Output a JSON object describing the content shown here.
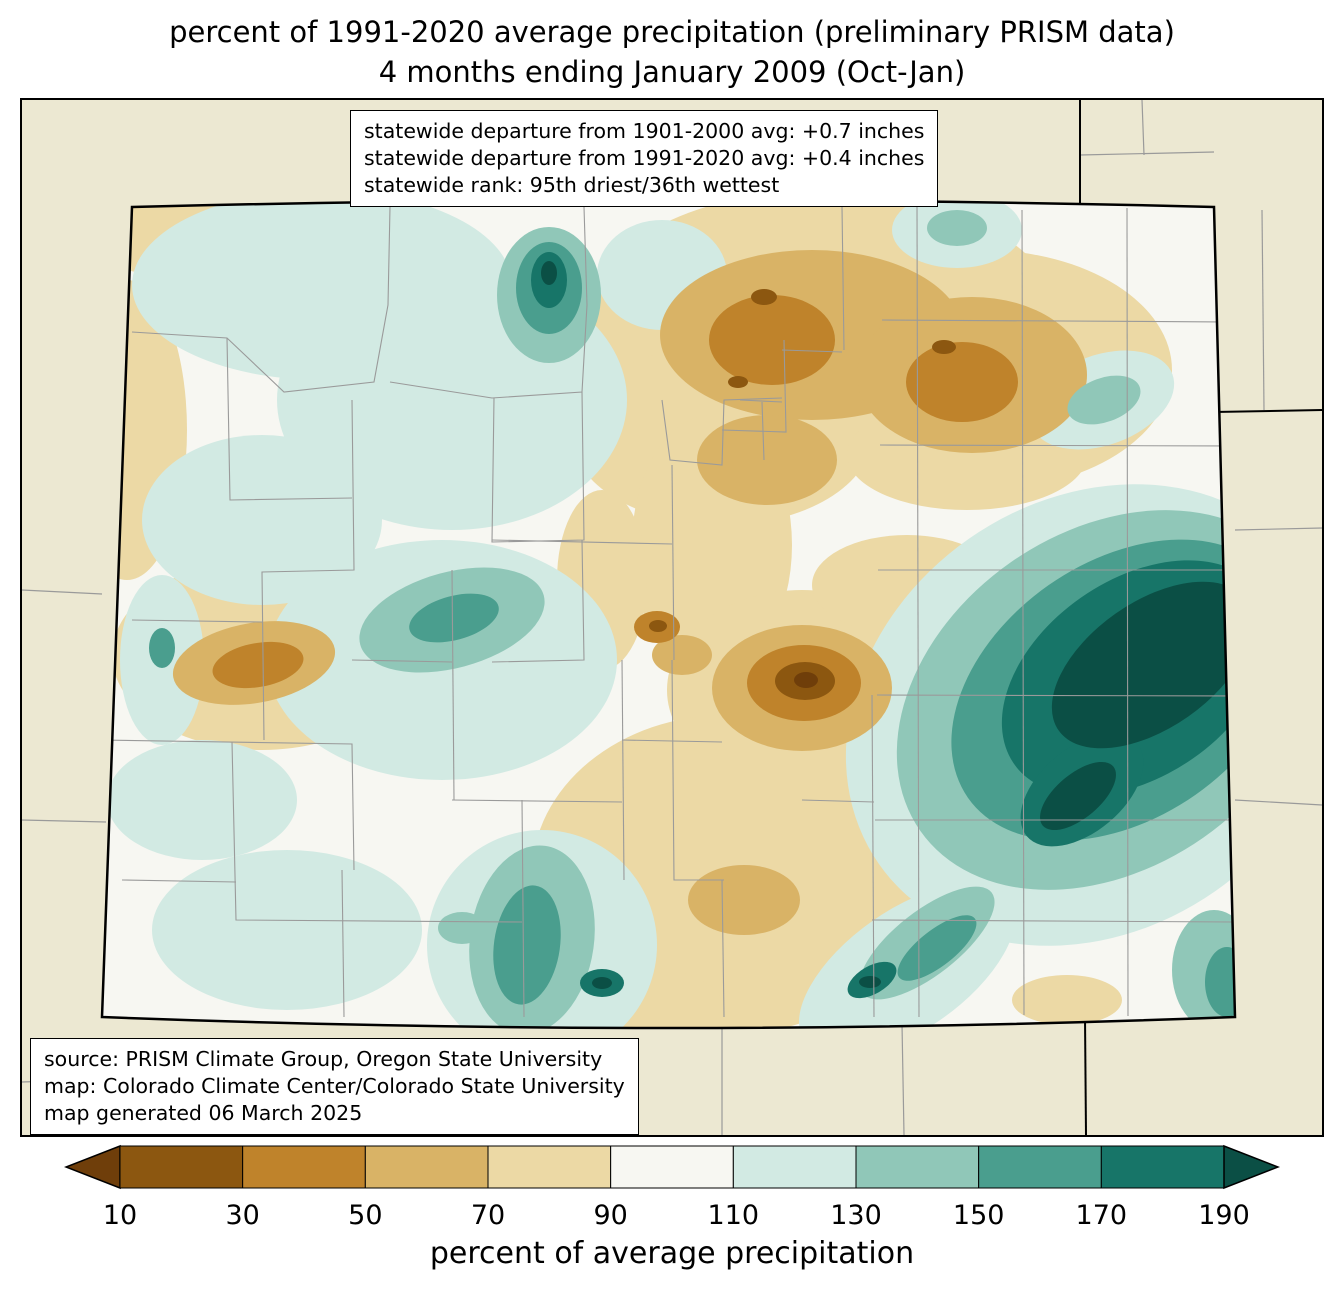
{
  "title": {
    "line1": "percent of 1991-2020 average precipitation (preliminary PRISM data)",
    "line2": "4 months ending January 2009 (Oct-Jan)"
  },
  "stats_box": {
    "line1": "statewide departure from 1901-2000 avg: +0.7 inches",
    "line2": "statewide departure from 1991-2020 avg: +0.4 inches",
    "line3": "statewide rank: 95th driest/36th wettest"
  },
  "source_box": {
    "line1": "source: PRISM Climate Group, Oregon State University",
    "line2": "map: Colorado Climate Center/Colorado State University",
    "line3": "map generated 06 March 2025"
  },
  "colorbar": {
    "label": "percent of average precipitation",
    "ticks": [
      "10",
      "30",
      "50",
      "70",
      "90",
      "110",
      "130",
      "150",
      "170",
      "190"
    ],
    "segment_colors": [
      "#8c5710",
      "#bf832b",
      "#d9b366",
      "#ecd9a5",
      "#f7f7f2",
      "#d2eae3",
      "#90c7b8",
      "#4a9e8e",
      "#177568"
    ],
    "arrow_left_color": "#6f3e0a",
    "arrow_right_color": "#0b4f45"
  },
  "map": {
    "background_color": "#ece8d2",
    "county_line_color": "#9a9a9a",
    "state_border_color": "#000000",
    "interior_base_color": "#f7f7f2"
  }
}
